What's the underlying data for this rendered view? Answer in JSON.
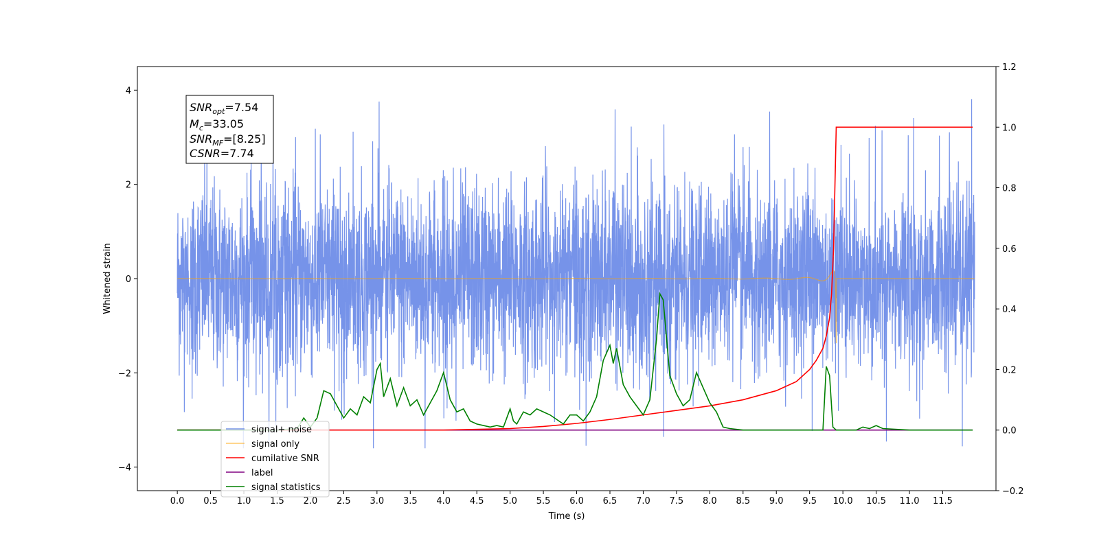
{
  "chart_data": {
    "type": "line",
    "xlabel": "Time (s)",
    "ylabel": "Whitened strain",
    "xlim": [
      -0.6,
      12.3
    ],
    "ylim": [
      -4.5,
      4.5
    ],
    "y2lim": [
      -0.2,
      1.2
    ],
    "x_ticks": [
      "0.0",
      "0.5",
      "1.0",
      "1.5",
      "2.0",
      "2.5",
      "3.0",
      "3.5",
      "4.0",
      "4.5",
      "5.0",
      "5.5",
      "6.0",
      "6.5",
      "7.0",
      "7.5",
      "8.0",
      "8.5",
      "9.0",
      "9.5",
      "10.0",
      "10.5",
      "11.0",
      "11.5"
    ],
    "y_ticks": [
      "−4",
      "−2",
      "0",
      "2",
      "4"
    ],
    "y2_ticks": [
      "−0.2",
      "0.0",
      "0.2",
      "0.4",
      "0.6",
      "0.8",
      "1.0",
      "1.2"
    ],
    "legend_position": "lower-left",
    "annotation": [
      {
        "name": "SNR",
        "sub": "opt",
        "value": "=7.54"
      },
      {
        "name": "M",
        "sub": "c",
        "value": "=33.05"
      },
      {
        "name": "SNR",
        "sub": "MF",
        "value": "=[8.25]"
      },
      {
        "name": "CSNR",
        "sub": "",
        "value": "=7.74"
      }
    ],
    "series": [
      {
        "name": "signal+ noise",
        "color": "#4169e1",
        "axis": "left",
        "description_range": [
          -3.6,
          4.1
        ]
      },
      {
        "name": "signal only",
        "color": "#ffa500",
        "axis": "left",
        "chirp_end": 9.9
      },
      {
        "name": "cumilative SNR",
        "color": "#ff0000",
        "axis": "right",
        "x": [
          0,
          4.0,
          5.0,
          5.5,
          6.0,
          6.5,
          7.0,
          7.5,
          8.0,
          8.5,
          9.0,
          9.3,
          9.5,
          9.6,
          9.7,
          9.75,
          9.8,
          9.83,
          9.86,
          9.88,
          9.9,
          10.0,
          11.0,
          11.95
        ],
        "values": [
          0,
          0,
          0.005,
          0.012,
          0.022,
          0.035,
          0.05,
          0.065,
          0.08,
          0.1,
          0.13,
          0.16,
          0.2,
          0.23,
          0.27,
          0.31,
          0.37,
          0.45,
          0.6,
          0.8,
          1.0,
          1.0,
          1.0,
          1.0
        ]
      },
      {
        "name": "label",
        "color": "#800080",
        "axis": "right",
        "x": [
          0,
          11.95
        ],
        "values": [
          0,
          0
        ]
      },
      {
        "name": "signal statistics",
        "color": "#008000",
        "axis": "right",
        "x": [
          0,
          1.5,
          1.8,
          1.9,
          2.0,
          2.1,
          2.2,
          2.3,
          2.4,
          2.5,
          2.6,
          2.7,
          2.8,
          2.9,
          3.0,
          3.05,
          3.1,
          3.2,
          3.3,
          3.4,
          3.5,
          3.6,
          3.7,
          3.8,
          3.9,
          4.0,
          4.1,
          4.2,
          4.3,
          4.4,
          4.5,
          4.6,
          4.7,
          4.8,
          4.9,
          5.0,
          5.05,
          5.1,
          5.2,
          5.3,
          5.4,
          5.5,
          5.6,
          5.7,
          5.8,
          5.9,
          6.0,
          6.1,
          6.2,
          6.3,
          6.4,
          6.5,
          6.55,
          6.6,
          6.7,
          6.8,
          6.9,
          7.0,
          7.1,
          7.2,
          7.25,
          7.3,
          7.4,
          7.5,
          7.6,
          7.7,
          7.8,
          7.9,
          8.0,
          8.1,
          8.2,
          8.3,
          8.5,
          9.0,
          9.5,
          9.7,
          9.75,
          9.8,
          9.85,
          9.9,
          10.0,
          10.2,
          10.3,
          10.4,
          10.5,
          10.6,
          11.0,
          11.95
        ],
        "values": [
          0,
          0,
          0.005,
          0.04,
          0.01,
          0.04,
          0.13,
          0.12,
          0.08,
          0.04,
          0.07,
          0.05,
          0.11,
          0.09,
          0.2,
          0.22,
          0.11,
          0.17,
          0.08,
          0.14,
          0.08,
          0.1,
          0.05,
          0.09,
          0.13,
          0.19,
          0.1,
          0.06,
          0.07,
          0.03,
          0.02,
          0.015,
          0.01,
          0.015,
          0.01,
          0.07,
          0.03,
          0.02,
          0.06,
          0.05,
          0.07,
          0.06,
          0.05,
          0.035,
          0.02,
          0.05,
          0.05,
          0.03,
          0.06,
          0.11,
          0.23,
          0.28,
          0.22,
          0.27,
          0.15,
          0.11,
          0.08,
          0.05,
          0.1,
          0.3,
          0.45,
          0.43,
          0.18,
          0.12,
          0.08,
          0.1,
          0.19,
          0.14,
          0.09,
          0.06,
          0.01,
          0.005,
          0,
          0,
          0,
          0,
          0.21,
          0.18,
          0.01,
          0,
          0,
          0,
          0.01,
          0.005,
          0.015,
          0.005,
          0,
          0
        ]
      }
    ]
  }
}
